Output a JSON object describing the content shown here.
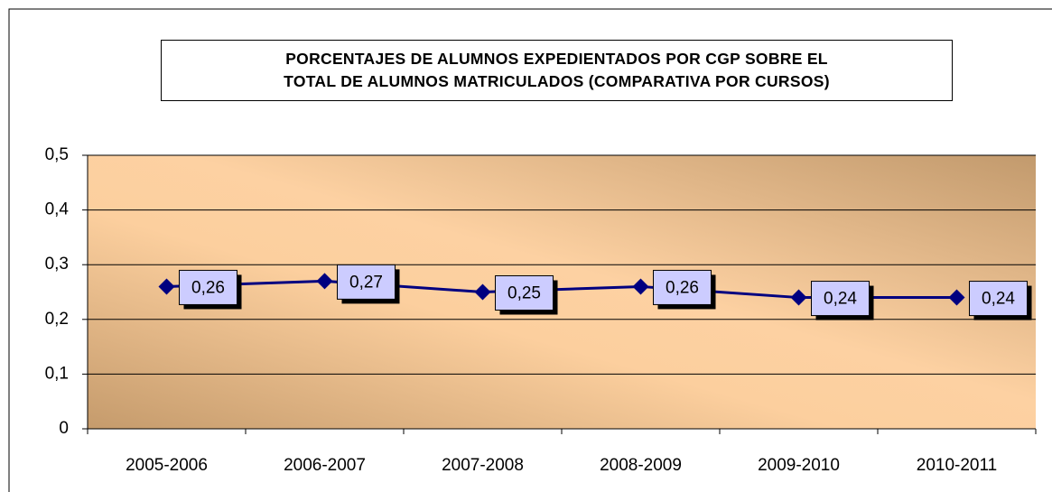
{
  "chart_data": {
    "type": "line",
    "title": "PORCENTAJES DE ALUMNOS EXPEDIENTADOS POR CGP SOBRE EL\nTOTAL DE ALUMNOS MATRICULADOS (COMPARATIVA POR CURSOS)",
    "categories": [
      "2005-2006",
      "2006-2007",
      "2007-2008",
      "2008-2009",
      "2009-2010",
      "2010-2011"
    ],
    "values": [
      0.26,
      0.27,
      0.25,
      0.26,
      0.24,
      0.24
    ],
    "value_labels": [
      "0,26",
      "0,27",
      "0,25",
      "0,26",
      "0,24",
      "0,24"
    ],
    "color": "#000080",
    "ylim": [
      0,
      0.5
    ],
    "yticks": [
      0,
      {
        "value": 0.1,
        "label": "0,1"
      },
      {
        "value": 0.2,
        "label": "0,2"
      },
      {
        "value": 0.3,
        "label": "0,3"
      },
      {
        "value": 0.4,
        "label": "0,4"
      },
      {
        "value": 0.5,
        "label": "0,5"
      }
    ],
    "grid": true
  }
}
